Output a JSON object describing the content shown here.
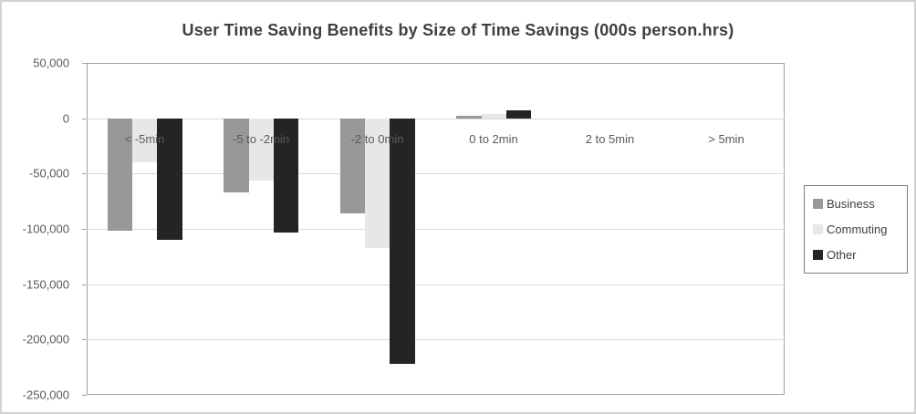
{
  "frame": {
    "background": "#ffffff",
    "border_color": "#d2d2d2"
  },
  "chart_data": {
    "type": "bar",
    "title": "User Time Saving Benefits by Size of Time Savings (000s person.hrs)",
    "xlabel": "",
    "ylabel": "",
    "units": "000s person.hrs",
    "categories": [
      "< -5min",
      "-5 to -2min",
      "-2 to 0min",
      "0 to 2min",
      "2 to 5min",
      "> 5min"
    ],
    "series": [
      {
        "name": "Business",
        "color": "#989898",
        "values": [
          -102000,
          -67000,
          -86000,
          2500,
          0,
          0
        ]
      },
      {
        "name": "Commuting",
        "color": "#e7e7e7",
        "values": [
          -40000,
          -56000,
          -117000,
          3500,
          0,
          0
        ]
      },
      {
        "name": "Other",
        "color": "#242424",
        "values": [
          -110000,
          -103000,
          -222000,
          7000,
          0,
          0
        ]
      }
    ],
    "y_ticks": [
      50000,
      0,
      -50000,
      -100000,
      -150000,
      -200000,
      -250000
    ],
    "ylim": [
      -250000,
      50000
    ],
    "grid": true,
    "gridline_color": "#d9d9d9",
    "plot_border_color": "#a2a2a2",
    "axis_text_color": "#595959",
    "title_color": "#3f3f3f",
    "legend_position": "right"
  },
  "legend": {
    "border_color": "#7f7f7f"
  }
}
